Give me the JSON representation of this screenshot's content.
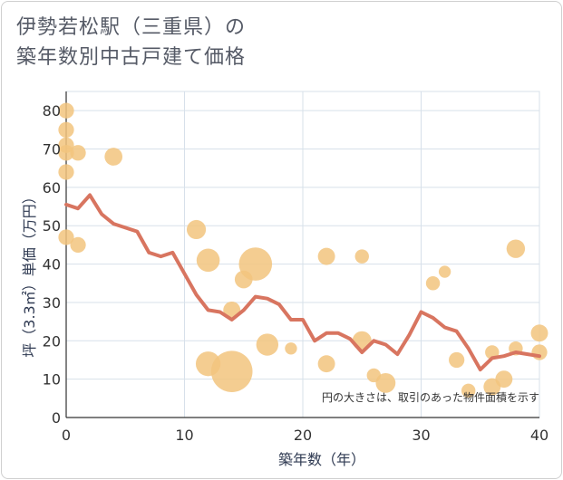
{
  "page": {
    "title_line1": "伊勢若松駅（三重県）の",
    "title_line2": "築年数別中古戸建て価格"
  },
  "chart_data": {
    "type": "scatter",
    "xlabel": "築年数（年）",
    "ylabel": "坪（3.3㎡）単価（万円）",
    "xlim": [
      0,
      40
    ],
    "ylim": [
      0,
      85
    ],
    "xticks": [
      0,
      10,
      20,
      30,
      40
    ],
    "yticks": [
      0,
      10,
      20,
      30,
      40,
      50,
      60,
      70,
      80
    ],
    "grid": true,
    "note": "円の大きさは、取引のあった物件面積を示す",
    "colors": {
      "bubble": "#f2c47e",
      "line": "#d87560",
      "grid": "#d7e0ea"
    },
    "bubbles": [
      {
        "x": 0,
        "y": 80,
        "size": 1
      },
      {
        "x": 0,
        "y": 75,
        "size": 1
      },
      {
        "x": 0,
        "y": 71,
        "size": 1
      },
      {
        "x": 0,
        "y": 69,
        "size": 1
      },
      {
        "x": 0,
        "y": 64,
        "size": 1
      },
      {
        "x": 0,
        "y": 47,
        "size": 1
      },
      {
        "x": 1,
        "y": 69,
        "size": 1
      },
      {
        "x": 1,
        "y": 45,
        "size": 1
      },
      {
        "x": 4,
        "y": 68,
        "size": 1.3
      },
      {
        "x": 11,
        "y": 49,
        "size": 1.5
      },
      {
        "x": 12,
        "y": 41,
        "size": 2.2
      },
      {
        "x": 12,
        "y": 14,
        "size": 2.5
      },
      {
        "x": 14,
        "y": 28,
        "size": 1.2
      },
      {
        "x": 14,
        "y": 12,
        "size": 7
      },
      {
        "x": 15,
        "y": 36,
        "size": 1.3
      },
      {
        "x": 16,
        "y": 40,
        "size": 4.5
      },
      {
        "x": 17,
        "y": 19,
        "size": 2
      },
      {
        "x": 19,
        "y": 18,
        "size": 0.6
      },
      {
        "x": 22,
        "y": 42,
        "size": 1.2
      },
      {
        "x": 22,
        "y": 14,
        "size": 1.2
      },
      {
        "x": 25,
        "y": 42,
        "size": 0.8
      },
      {
        "x": 25,
        "y": 20,
        "size": 1.5
      },
      {
        "x": 26,
        "y": 11,
        "size": 0.8
      },
      {
        "x": 27,
        "y": 9,
        "size": 1.6
      },
      {
        "x": 31,
        "y": 35,
        "size": 0.8
      },
      {
        "x": 32,
        "y": 38,
        "size": 0.6
      },
      {
        "x": 33,
        "y": 15,
        "size": 1
      },
      {
        "x": 34,
        "y": 7,
        "size": 0.8
      },
      {
        "x": 36,
        "y": 17,
        "size": 0.8
      },
      {
        "x": 36,
        "y": 8,
        "size": 1.2
      },
      {
        "x": 37,
        "y": 10,
        "size": 1.2
      },
      {
        "x": 38,
        "y": 44,
        "size": 1.4
      },
      {
        "x": 38,
        "y": 18,
        "size": 0.8
      },
      {
        "x": 40,
        "y": 22,
        "size": 1.2
      },
      {
        "x": 40,
        "y": 17,
        "size": 1
      }
    ],
    "series": [
      {
        "x": [
          0,
          1,
          2,
          3,
          4,
          5,
          6,
          7,
          8,
          9,
          10,
          11,
          12,
          13,
          14,
          15,
          16,
          17,
          18,
          19,
          20,
          21,
          22,
          23,
          24,
          25,
          26,
          27,
          28,
          29,
          30,
          31,
          32,
          33,
          34,
          35,
          36,
          37,
          38,
          39,
          40
        ],
        "values": [
          55.5,
          54.5,
          58,
          53,
          50.5,
          49.5,
          48.5,
          43,
          42,
          43,
          37.5,
          32,
          28,
          27.5,
          25.5,
          28,
          31.5,
          31,
          29.5,
          25.5,
          25.5,
          20,
          22,
          22,
          20.5,
          17,
          20,
          19,
          16.5,
          21.5,
          27.5,
          26,
          23.5,
          22.5,
          18,
          12.5,
          15.5,
          16,
          17,
          16.5,
          16
        ]
      }
    ]
  }
}
